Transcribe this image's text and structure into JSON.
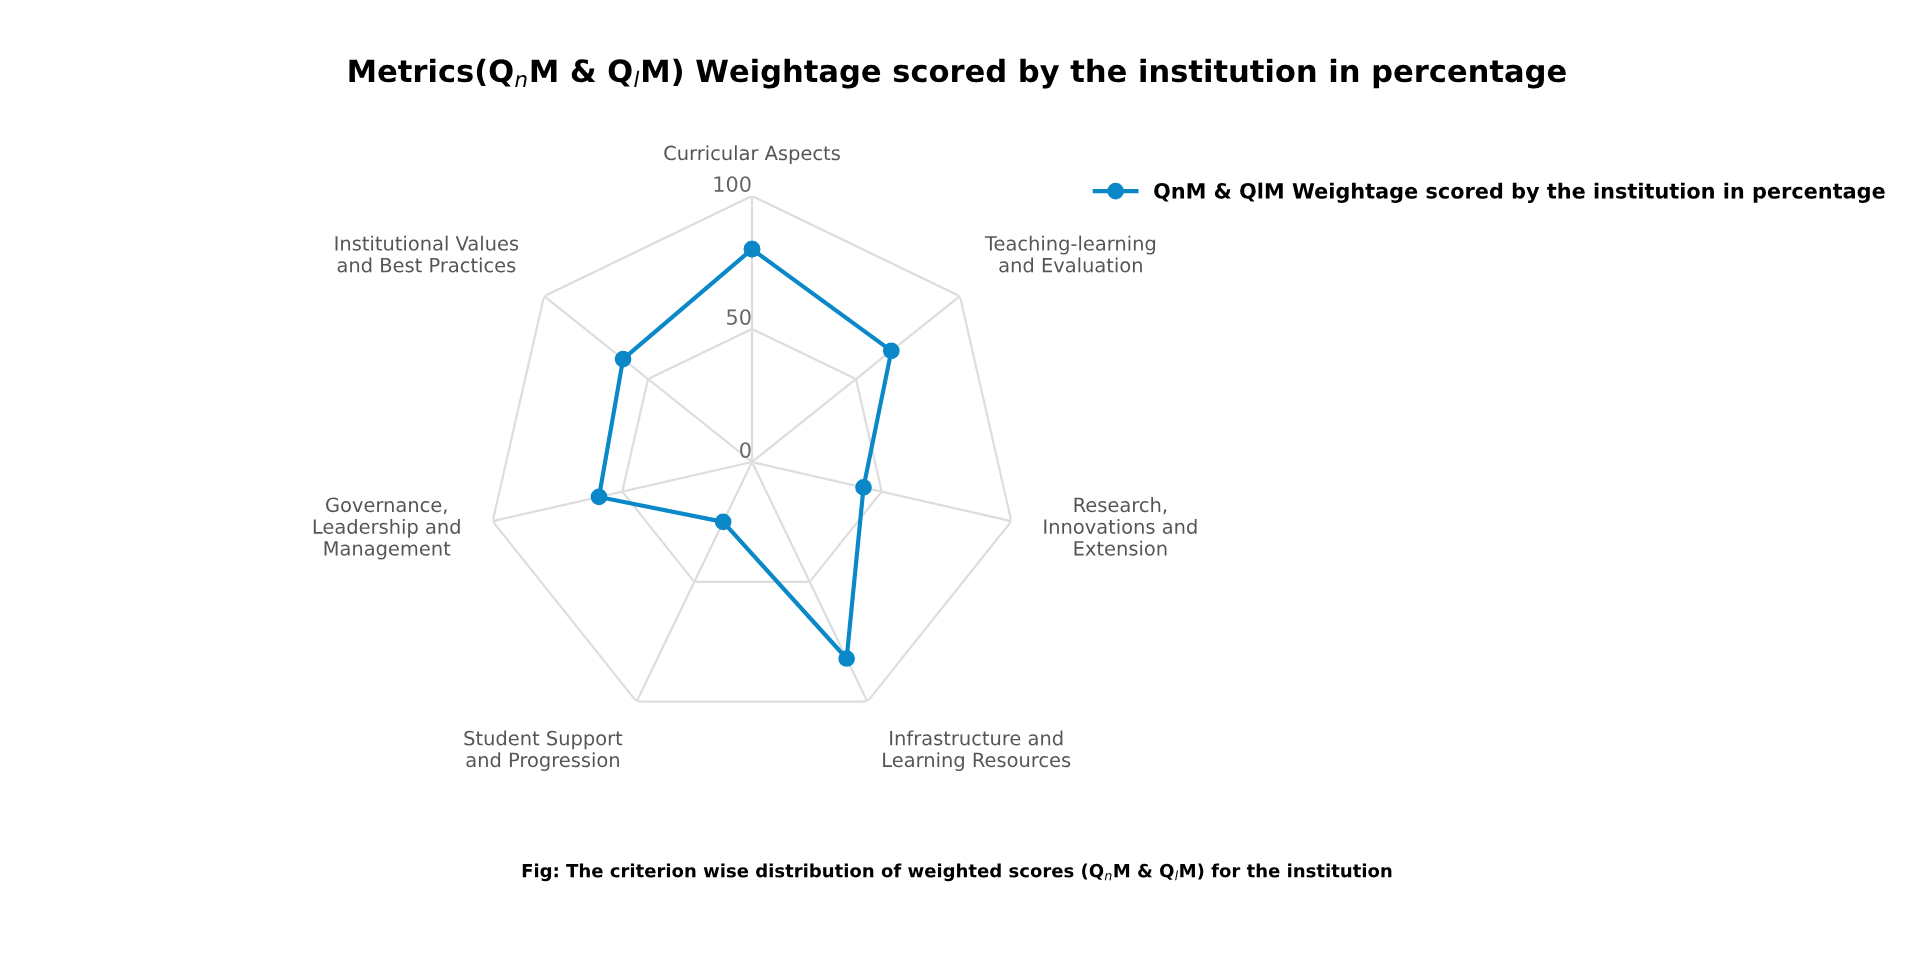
{
  "chart_data": {
    "type": "radar",
    "title": "Metrics(Q$_{n}$M & Q$_{l}$M) Weightage scored by the institution in percentage",
    "categories": [
      "Curricular Aspects",
      "Teaching-learning\nand Evaluation",
      "Research,\nInnovations and\nExtension",
      "Infrastructure and\nLearning Resources",
      "Student Support\nand Progression",
      "Governance,\nLeadership and\nManagement",
      "Institutional Values\nand Best Practices"
    ],
    "series": [
      {
        "name": "QnM & QlM Weightage scored by the institution in percentage",
        "color": "#0a88c8",
        "values": [
          80,
          67,
          43,
          82,
          25,
          59,
          62
        ]
      }
    ],
    "ylim": [
      0,
      100
    ],
    "yticks": [
      0,
      50,
      100
    ],
    "grid": true,
    "marker": "circle",
    "legend": "top right",
    "annotations": [
      "Fig: The criterion wise distribution of weighted scores (Q$_{n}$M & Q$_{l}$M) for the institution"
    ]
  }
}
